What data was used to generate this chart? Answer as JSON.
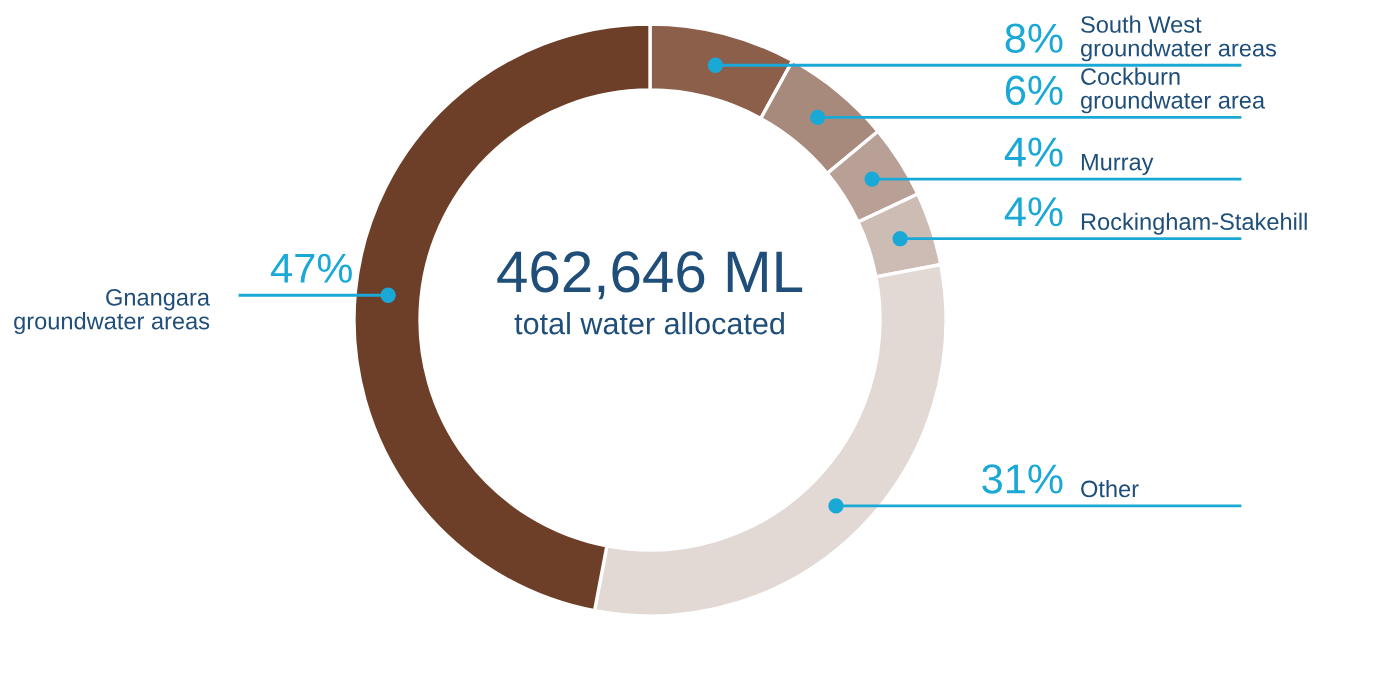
{
  "chart_data": {
    "type": "donut",
    "title": "462,646 ML",
    "subtitle": "total water allocated",
    "categories": [
      "South West\ngroundwater areas",
      "Cockburn\ngroundwater area",
      "Murray",
      "Rockingham-Stakehill",
      "Other",
      "Gnangara\ngroundwater areas"
    ],
    "values": [
      8,
      6,
      4,
      4,
      31,
      47
    ],
    "value_labels": [
      "8%",
      "6%",
      "4%",
      "4%",
      "31%",
      "47%"
    ],
    "colors": [
      "#8c5f4b",
      "#a88a7c",
      "#b9a096",
      "#cdbcb4",
      "#e2d9d4",
      "#6e3f28"
    ],
    "legend": false
  }
}
